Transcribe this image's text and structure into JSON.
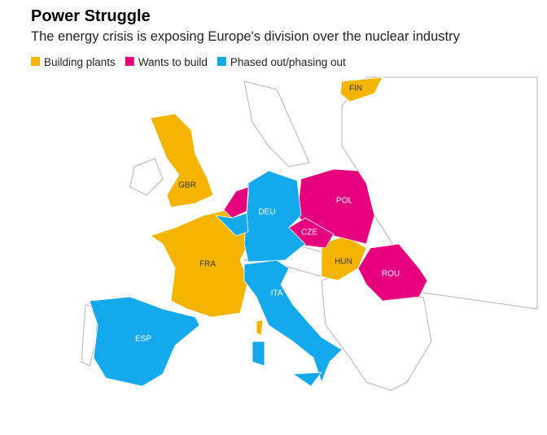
{
  "header": {
    "title": "Power Struggle",
    "subtitle": "The energy crisis is exposing Europe's division over the nuclear industry"
  },
  "legend": [
    {
      "label": "Building plants",
      "color": "#f5b400",
      "countries": [
        "FIN",
        "GBR",
        "FRA",
        "HUN"
      ]
    },
    {
      "label": "Wants to build",
      "color": "#e6007e",
      "countries": [
        "POL",
        "CZE",
        "ROU"
      ]
    },
    {
      "label": "Phased out/phasing out",
      "color": "#14a9ec",
      "countries": [
        "DEU",
        "ITA",
        "ESP"
      ]
    }
  ]
}
